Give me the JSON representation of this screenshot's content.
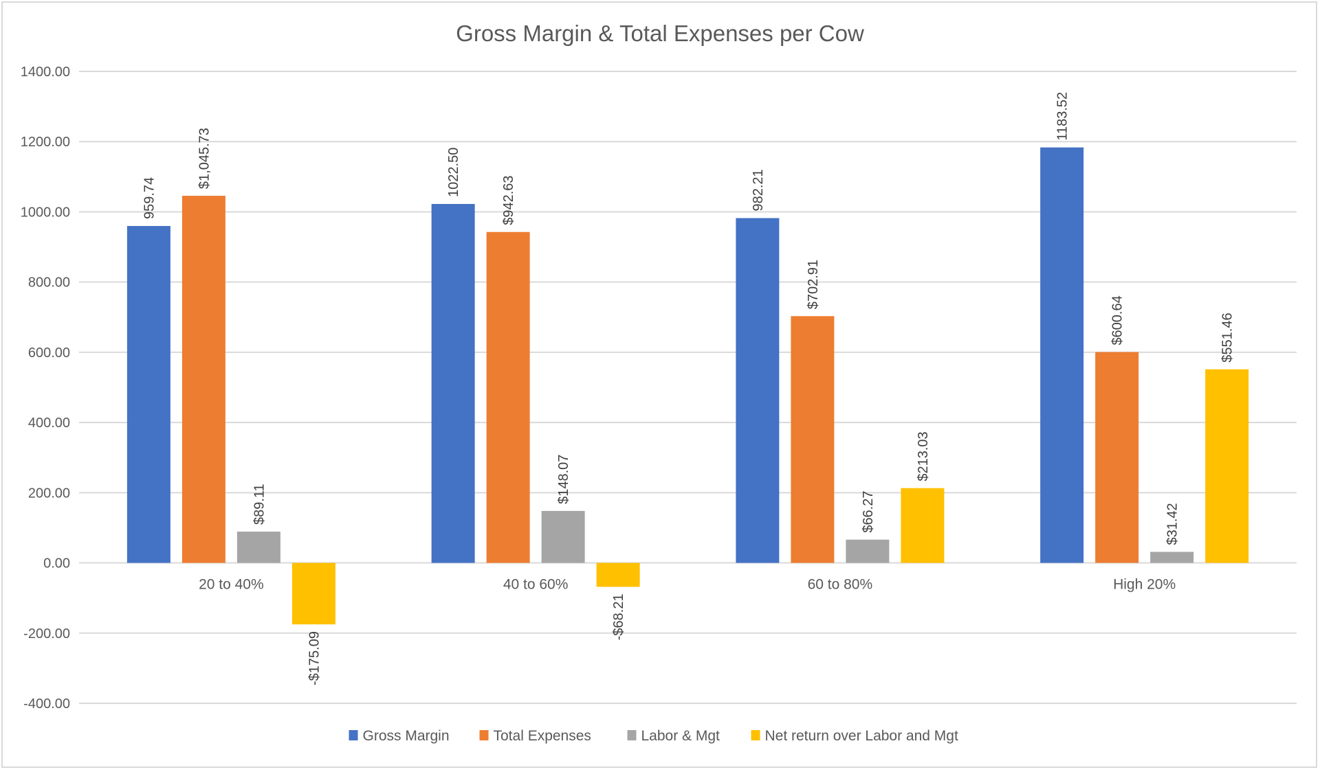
{
  "chart_data": {
    "type": "bar",
    "title": "Gross Margin & Total Expenses per Cow",
    "xlabel": "",
    "ylabel": "",
    "ylim": [
      -400,
      1400
    ],
    "yticks": [
      -400,
      -200,
      0,
      200,
      400,
      600,
      800,
      1000,
      1200,
      1400
    ],
    "ytick_labels": [
      "-400.00",
      "-200.00",
      "0.00",
      "200.00",
      "400.00",
      "600.00",
      "800.00",
      "1000.00",
      "1200.00",
      "1400.00"
    ],
    "grid": true,
    "legend_position": "bottom",
    "categories": [
      "20 to 40%",
      "40 to 60%",
      "60 to 80%",
      "High 20%"
    ],
    "series": [
      {
        "name": "Gross Margin",
        "color": "#4472C4",
        "values": [
          959.74,
          1022.5,
          982.21,
          1183.52
        ],
        "labels": [
          "959.74",
          "1022.50",
          "982.21",
          "1183.52"
        ]
      },
      {
        "name": "Total Expenses",
        "color": "#ED7D31",
        "values": [
          1045.73,
          942.63,
          702.91,
          600.64
        ],
        "labels": [
          "$1,045.73",
          "$942.63",
          "$702.91",
          "$600.64"
        ]
      },
      {
        "name": "Labor & Mgt",
        "color": "#A5A5A5",
        "values": [
          89.11,
          148.07,
          66.27,
          31.42
        ],
        "labels": [
          "$89.11",
          "$148.07",
          "$66.27",
          "$31.42"
        ]
      },
      {
        "name": "Net return over Labor and Mgt",
        "color": "#FFC000",
        "values": [
          -175.09,
          -68.21,
          213.03,
          551.46
        ],
        "labels": [
          "-$175.09",
          "-$68.21",
          "$213.03",
          "$551.46"
        ]
      }
    ]
  }
}
